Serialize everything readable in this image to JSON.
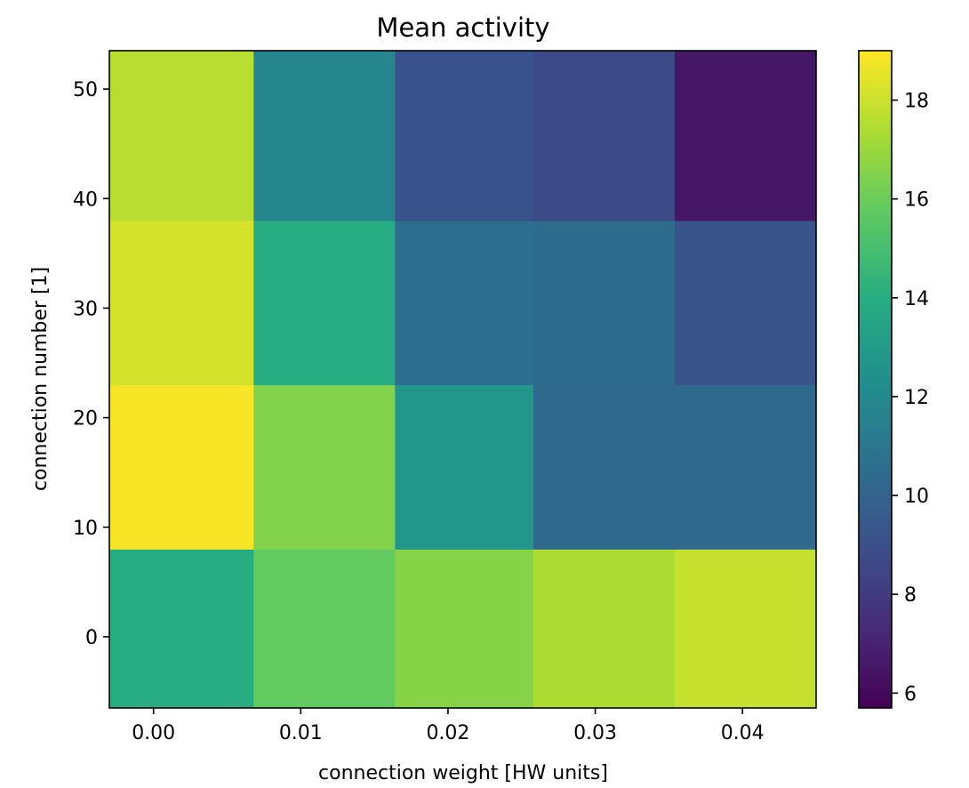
{
  "chart_data": {
    "type": "heatmap",
    "title": "Mean activity",
    "xlabel": "connection weight [HW units]",
    "ylabel": "connection number [1]",
    "x_ticks": [
      "0.00",
      "0.01",
      "0.02",
      "0.03",
      "0.04"
    ],
    "y_ticks": [
      "0",
      "10",
      "20",
      "30",
      "40",
      "50"
    ],
    "x_edges": [
      -0.003,
      0.0068,
      0.0164,
      0.0258,
      0.0354,
      0.045
    ],
    "y_edges": [
      -6.5,
      8,
      23,
      38,
      53.5
    ],
    "xlim": [
      -0.003,
      0.045
    ],
    "ylim": [
      -6.5,
      53.5
    ],
    "values": [
      [
        14.0,
        15.8,
        16.6,
        17.4,
        17.9
      ],
      [
        18.9,
        16.5,
        12.7,
        10.3,
        10.3
      ],
      [
        18.2,
        14.0,
        10.6,
        10.4,
        9.2
      ],
      [
        17.6,
        11.8,
        9.1,
        8.7,
        6.5
      ]
    ],
    "colormap": "viridis",
    "colorbar": {
      "min": 5.7,
      "max": 19.0,
      "ticks": [
        "6",
        "8",
        "10",
        "12",
        "14",
        "16",
        "18"
      ]
    }
  }
}
